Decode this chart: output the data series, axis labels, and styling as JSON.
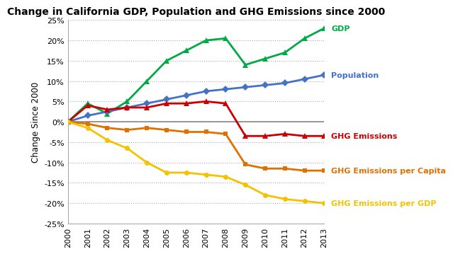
{
  "title": "Change in California GDP, Population and GHG Emissions since 2000",
  "ylabel": "Change Since 2000",
  "years": [
    2000,
    2001,
    2002,
    2003,
    2004,
    2005,
    2006,
    2007,
    2008,
    2009,
    2010,
    2011,
    2012,
    2013
  ],
  "gdp": [
    0,
    4.5,
    2.0,
    5.0,
    10.0,
    15.0,
    17.5,
    20.0,
    20.5,
    14.0,
    15.5,
    17.0,
    20.5,
    23.0
  ],
  "population": [
    0,
    1.5,
    2.5,
    3.5,
    4.5,
    5.5,
    6.5,
    7.5,
    8.0,
    8.5,
    9.0,
    9.5,
    10.5,
    11.5
  ],
  "ghg_emissions": [
    0,
    4.0,
    3.0,
    3.5,
    3.5,
    4.5,
    4.5,
    5.0,
    4.5,
    -3.5,
    -3.5,
    -3.0,
    -3.5,
    -3.5
  ],
  "ghg_per_capita": [
    0,
    -0.5,
    -1.5,
    -2.0,
    -1.5,
    -2.0,
    -2.5,
    -2.5,
    -3.0,
    -10.5,
    -11.5,
    -11.5,
    -12.0,
    -12.0
  ],
  "ghg_per_gdp": [
    0,
    -1.5,
    -4.5,
    -6.5,
    -10.0,
    -12.5,
    -12.5,
    -13.0,
    -13.5,
    -15.5,
    -18.0,
    -19.0,
    -19.5,
    -20.0
  ],
  "gdp_color": "#00aa44",
  "population_color": "#4472c4",
  "ghg_color": "#cc0000",
  "ghg_per_capita_color": "#e07000",
  "ghg_per_gdp_color": "#f5c200",
  "ylim": [
    -25,
    25
  ],
  "yticks": [
    -25,
    -20,
    -15,
    -10,
    -5,
    0,
    5,
    10,
    15,
    20,
    25
  ],
  "background_color": "#ffffff"
}
